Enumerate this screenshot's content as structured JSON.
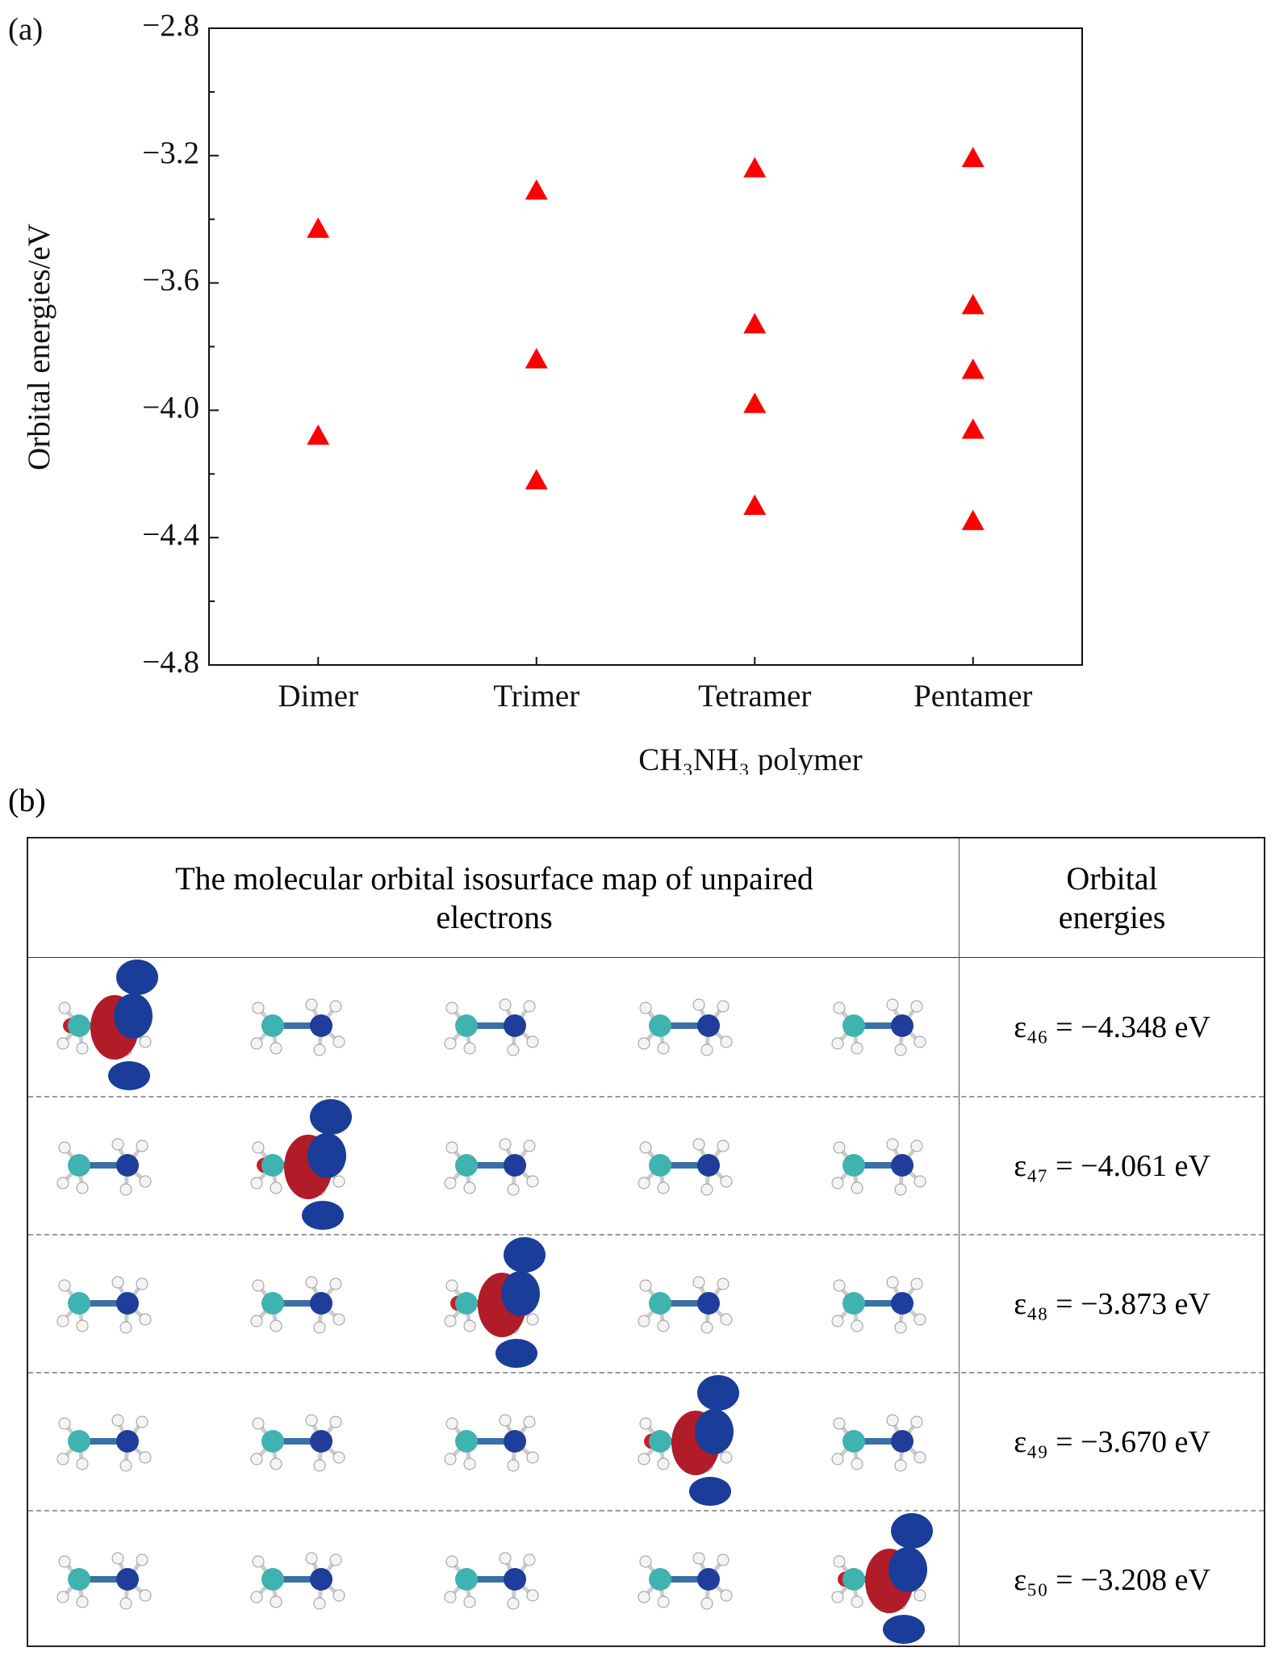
{
  "chart_data": {
    "type": "scatter",
    "panel_label": "(a)",
    "categories": [
      "Dimer",
      "Trimer",
      "Tetramer",
      "Pentamer"
    ],
    "values": [
      [
        -3.43,
        -4.08
      ],
      [
        -3.31,
        -3.84,
        -4.22
      ],
      [
        -3.24,
        -3.73,
        -3.98,
        -4.3
      ],
      [
        -3.208,
        -3.67,
        -3.873,
        -4.061,
        -4.348
      ]
    ],
    "color": "#ff0000",
    "marker": "triangle",
    "xlabel": "CH₃NH₃ polymer",
    "ylabel": "Orbital energies/eV",
    "ylim": [
      -4.8,
      -2.8
    ],
    "yticks": [
      {
        "value": -4.8,
        "label": "−4.8"
      },
      {
        "value": -4.4,
        "label": "−4.4"
      },
      {
        "value": -4.0,
        "label": "−4.0"
      },
      {
        "value": -3.6,
        "label": "−3.6"
      },
      {
        "value": -3.2,
        "label": "−3.2"
      },
      {
        "value": -2.8,
        "label": "−2.8"
      }
    ],
    "minor_yticks": [
      -4.6,
      -4.2,
      -3.8,
      -3.4,
      -3.0
    ],
    "grid": false
  },
  "table": {
    "panel_label": "(b)",
    "header": [
      "The molecular orbital isosurface map of unpaired electrons",
      "Orbital energies"
    ],
    "rows": [
      "ε₄₆ = −4.348 eV",
      "ε₄₇ = −4.061 eV",
      "ε₄₈ = −3.873 eV",
      "ε₄₉ = −3.670 eV",
      "ε₅₀ = −3.208 eV"
    ]
  }
}
